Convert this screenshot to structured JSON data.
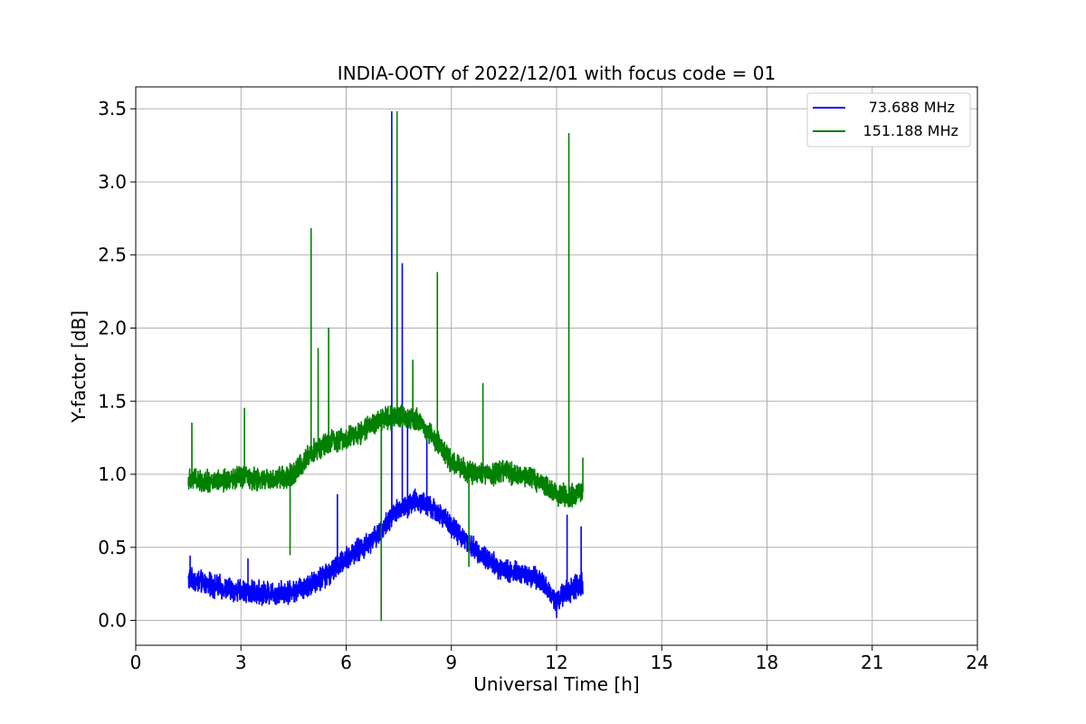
{
  "chart_data": {
    "type": "line",
    "title": "INDIA-OOTY of 2022/12/01 with focus code = 01",
    "xlabel": "Universal Time [h]",
    "ylabel": "Y-factor [dB]",
    "xlim": [
      0,
      24
    ],
    "ylim": [
      -0.17,
      3.65
    ],
    "xticks": [
      0,
      3,
      6,
      9,
      12,
      15,
      18,
      21,
      24
    ],
    "yticks": [
      0.0,
      0.5,
      1.0,
      1.5,
      2.0,
      2.5,
      3.0,
      3.5
    ],
    "ytick_labels": [
      "0.0",
      "0.5",
      "1.0",
      "1.5",
      "2.0",
      "2.5",
      "3.0",
      "3.5"
    ],
    "grid": true,
    "legend_position": "top-right",
    "series": [
      {
        "name": "73.688 MHz",
        "color": "#0000ff",
        "baseline": [
          [
            1.5,
            0.28
          ],
          [
            2.0,
            0.25
          ],
          [
            2.5,
            0.22
          ],
          [
            3.0,
            0.2
          ],
          [
            3.5,
            0.19
          ],
          [
            4.0,
            0.19
          ],
          [
            4.5,
            0.2
          ],
          [
            5.0,
            0.25
          ],
          [
            5.5,
            0.32
          ],
          [
            5.8,
            0.38
          ],
          [
            6.0,
            0.43
          ],
          [
            6.5,
            0.5
          ],
          [
            7.0,
            0.62
          ],
          [
            7.5,
            0.76
          ],
          [
            8.0,
            0.82
          ],
          [
            8.5,
            0.76
          ],
          [
            9.0,
            0.65
          ],
          [
            9.5,
            0.52
          ],
          [
            10.0,
            0.42
          ],
          [
            10.5,
            0.34
          ],
          [
            11.0,
            0.32
          ],
          [
            11.5,
            0.28
          ],
          [
            12.0,
            0.14
          ],
          [
            12.3,
            0.2
          ],
          [
            12.75,
            0.25
          ]
        ],
        "spikes": [
          [
            1.55,
            0.44
          ],
          [
            3.2,
            0.42
          ],
          [
            5.75,
            0.86
          ],
          [
            7.3,
            3.48
          ],
          [
            7.6,
            2.44
          ],
          [
            7.75,
            1.35
          ],
          [
            8.3,
            1.32
          ],
          [
            12.0,
            0.02
          ],
          [
            12.3,
            0.72
          ],
          [
            12.7,
            0.64
          ]
        ]
      },
      {
        "name": "151.188 MHz",
        "color": "#008000",
        "baseline": [
          [
            1.5,
            0.97
          ],
          [
            2.0,
            0.95
          ],
          [
            2.5,
            0.96
          ],
          [
            3.0,
            0.98
          ],
          [
            3.5,
            0.96
          ],
          [
            4.0,
            0.97
          ],
          [
            4.5,
            1.0
          ],
          [
            5.0,
            1.15
          ],
          [
            5.5,
            1.22
          ],
          [
            6.0,
            1.25
          ],
          [
            6.5,
            1.3
          ],
          [
            7.0,
            1.37
          ],
          [
            7.5,
            1.4
          ],
          [
            8.0,
            1.38
          ],
          [
            8.5,
            1.25
          ],
          [
            9.0,
            1.08
          ],
          [
            9.5,
            1.02
          ],
          [
            10.0,
            1.0
          ],
          [
            10.5,
            1.02
          ],
          [
            11.0,
            0.99
          ],
          [
            11.5,
            0.95
          ],
          [
            12.0,
            0.86
          ],
          [
            12.5,
            0.85
          ],
          [
            12.75,
            0.88
          ]
        ],
        "spikes": [
          [
            1.6,
            1.35
          ],
          [
            3.1,
            1.45
          ],
          [
            4.4,
            0.45
          ],
          [
            5.0,
            2.68
          ],
          [
            5.2,
            1.86
          ],
          [
            5.5,
            2.0
          ],
          [
            7.0,
            0.0
          ],
          [
            7.45,
            3.48
          ],
          [
            7.9,
            1.78
          ],
          [
            8.6,
            2.38
          ],
          [
            9.5,
            0.37
          ],
          [
            9.9,
            1.62
          ],
          [
            12.35,
            3.33
          ],
          [
            12.75,
            1.11
          ]
        ]
      }
    ]
  }
}
